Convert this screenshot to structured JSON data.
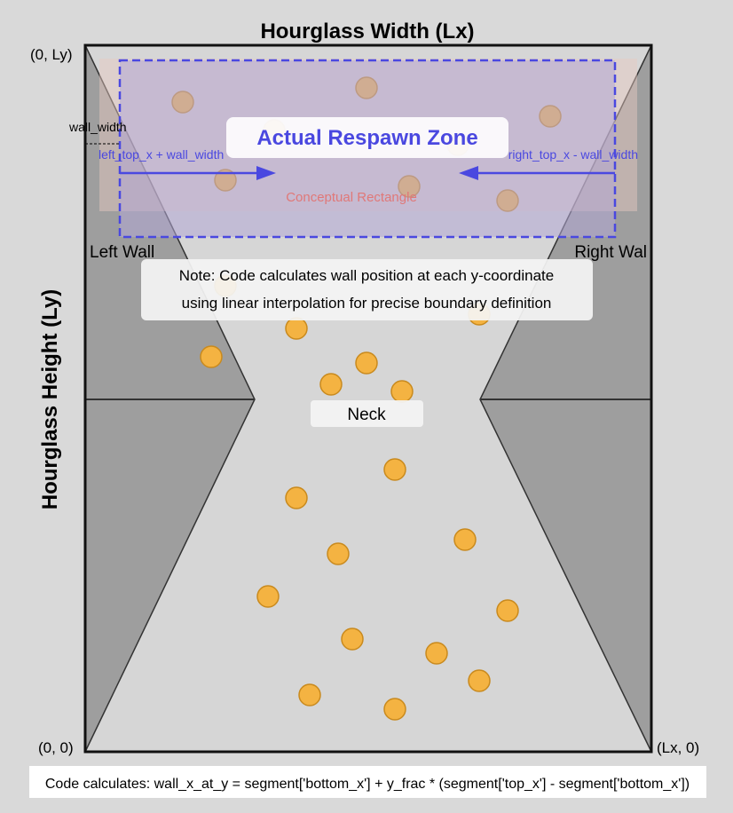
{
  "title": "Hourglass Width (Lx)",
  "y_axis_label": "Hourglass Height (Ly)",
  "corners": {
    "top_left": "(0, Ly)",
    "bottom_left": "(0, 0)",
    "bottom_right": "(Lx, 0)"
  },
  "wall_width_label": "wall_width",
  "respawn_zone": {
    "title": "Actual Respawn Zone",
    "left_bound_label": "left_top_x + wall_width",
    "right_bound_label": "right_top_x - wall_width",
    "conceptual_label": "Conceptual Rectangle"
  },
  "wall_labels": {
    "left": "Left Wall",
    "right": "Right Wal"
  },
  "note": {
    "line1": "Note: Code calculates wall position at each y-coordinate",
    "line2": "using linear interpolation for precise boundary definition"
  },
  "neck_label": "Neck",
  "formula": "Code calculates: wall_x_at_y = segment['bottom_x'] + y_frac * (segment['top_x'] - segment['bottom_x'])",
  "colors": {
    "background": "#d9d9d9",
    "chamber": "#d6d6d6",
    "wall_fill": "#9e9e9e",
    "zone_fill": "#c2b7d9",
    "zone_stroke": "#4a48e0",
    "conceptual_text": "#e07878",
    "particle_fill": "#f4b342",
    "particle_stroke": "#c98a1e"
  },
  "particle_count": 28
}
